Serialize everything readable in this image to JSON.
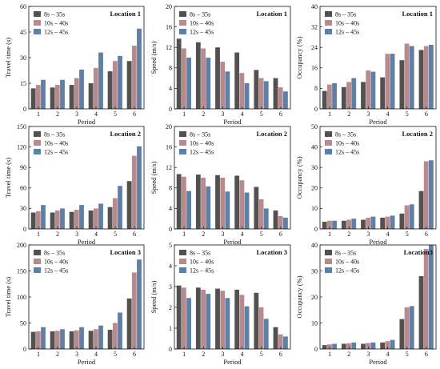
{
  "colors": [
    "#545050",
    "#b78b8e",
    "#5f7fa5"
  ],
  "legend": [
    "8s – 35s",
    "10s – 40s",
    "12s – 45s"
  ],
  "chart_data": [
    {
      "type": "bar",
      "title": "Location 1",
      "xlabel": "Period",
      "ylabel": "Travel time (s)",
      "categories": [
        "1",
        "2",
        "3",
        "4",
        "5",
        "6"
      ],
      "ylim": [
        0,
        60
      ],
      "yticks": [
        0,
        15,
        30,
        45,
        60
      ],
      "series": [
        {
          "name": "8s – 35s",
          "values": [
            12,
            12.5,
            14,
            15,
            22,
            28
          ]
        },
        {
          "name": "10s – 40s",
          "values": [
            14,
            14,
            18,
            24,
            28,
            37
          ]
        },
        {
          "name": "12s – 45s",
          "values": [
            17,
            17,
            23,
            33,
            31,
            47
          ]
        }
      ]
    },
    {
      "type": "bar",
      "title": "Location 1",
      "xlabel": "Period",
      "ylabel": "Speed (m/s)",
      "categories": [
        "1",
        "2",
        "3",
        "4",
        "5",
        "6"
      ],
      "ylim": [
        0,
        20
      ],
      "yticks": [
        0,
        4,
        8,
        12,
        16,
        20
      ],
      "series": [
        {
          "name": "8s – 35s",
          "values": [
            13.7,
            13,
            12,
            11,
            7.6,
            6
          ]
        },
        {
          "name": "10s – 40s",
          "values": [
            11.8,
            11.8,
            9.2,
            7,
            6,
            4.2
          ]
        },
        {
          "name": "12s – 45s",
          "values": [
            10,
            10,
            7.3,
            5,
            5.4,
            3.4
          ]
        }
      ]
    },
    {
      "type": "bar",
      "title": "Location 1",
      "xlabel": "Period",
      "ylabel": "Occupancy (%)",
      "categories": [
        "1",
        "2",
        "3",
        "4",
        "5",
        "6"
      ],
      "ylim": [
        0,
        40
      ],
      "yticks": [
        0,
        8,
        16,
        24,
        32,
        40
      ],
      "series": [
        {
          "name": "8s – 35s",
          "values": [
            7,
            8.5,
            10.5,
            12.3,
            19,
            23
          ]
        },
        {
          "name": "10s – 40s",
          "values": [
            9.5,
            10.5,
            15,
            21.5,
            25.5,
            24.5
          ]
        },
        {
          "name": "12s – 45s",
          "values": [
            10,
            12,
            14.5,
            21.5,
            24.5,
            25
          ]
        }
      ]
    },
    {
      "type": "bar",
      "title": "Location 2",
      "xlabel": "Period",
      "ylabel": "Travel time (s)",
      "categories": [
        "1",
        "2",
        "3",
        "4",
        "5",
        "6"
      ],
      "ylim": [
        0,
        150
      ],
      "yticks": [
        0,
        30,
        60,
        90,
        120,
        150
      ],
      "series": [
        {
          "name": "8s – 35s",
          "values": [
            24,
            24,
            25,
            27,
            32,
            70
          ]
        },
        {
          "name": "10s – 40s",
          "values": [
            26,
            27,
            28,
            30,
            45,
            107
          ]
        },
        {
          "name": "12s – 45s",
          "values": [
            35,
            30,
            35,
            37,
            63,
            121
          ]
        }
      ]
    },
    {
      "type": "bar",
      "title": "Location 2",
      "xlabel": "Period",
      "ylabel": "Speed (m/s)",
      "categories": [
        "1",
        "2",
        "3",
        "4",
        "5",
        "6"
      ],
      "ylim": [
        0,
        20
      ],
      "yticks": [
        0,
        4,
        8,
        12,
        16,
        20
      ],
      "series": [
        {
          "name": "8s – 35s",
          "values": [
            10.7,
            10.6,
            10.5,
            10.4,
            8.2,
            3.6
          ]
        },
        {
          "name": "10s – 40s",
          "values": [
            10.2,
            10,
            10,
            9.5,
            5.8,
            2.5
          ]
        },
        {
          "name": "12s – 45s",
          "values": [
            7.4,
            8.3,
            7.3,
            7.1,
            4,
            2.2
          ]
        }
      ]
    },
    {
      "type": "bar",
      "title": "Location 2",
      "xlabel": "Period",
      "ylabel": "Occupancy (%)",
      "categories": [
        "1",
        "2",
        "3",
        "4",
        "5",
        "6"
      ],
      "ylim": [
        0,
        50
      ],
      "yticks": [
        0,
        10,
        20,
        30,
        40,
        50
      ],
      "series": [
        {
          "name": "8s – 35s",
          "values": [
            3.5,
            4,
            4.5,
            5.5,
            7.5,
            18.5
          ]
        },
        {
          "name": "10s – 40s",
          "values": [
            4,
            4.5,
            5.5,
            6,
            11.5,
            33
          ]
        },
        {
          "name": "12s – 45s",
          "values": [
            4,
            5,
            6,
            6.5,
            12,
            33.5
          ]
        }
      ]
    },
    {
      "type": "bar",
      "title": "Location 3",
      "xlabel": "Period",
      "ylabel": "Travel time (s)",
      "categories": [
        "1",
        "2",
        "3",
        "4",
        "5",
        "6"
      ],
      "ylim": [
        0,
        200
      ],
      "yticks": [
        0,
        50,
        100,
        150,
        200
      ],
      "series": [
        {
          "name": "8s – 35s",
          "values": [
            33,
            34,
            34,
            35,
            37,
            97
          ]
        },
        {
          "name": "10s – 40s",
          "values": [
            34,
            35,
            36,
            38,
            50,
            147
          ]
        },
        {
          "name": "12s – 45s",
          "values": [
            42,
            38,
            42,
            45,
            70,
            172
          ]
        }
      ]
    },
    {
      "type": "bar",
      "title": "Location 3",
      "xlabel": "Period",
      "ylabel": "Speed (m/s)",
      "categories": [
        "1",
        "2",
        "3",
        "4",
        "5",
        "6"
      ],
      "ylim": [
        0,
        5
      ],
      "yticks": [
        0,
        1,
        2,
        3,
        4,
        5
      ],
      "series": [
        {
          "name": "8s – 35s",
          "values": [
            3.05,
            2.95,
            2.9,
            2.85,
            2.7,
            1.05
          ]
        },
        {
          "name": "10s – 40s",
          "values": [
            2.95,
            2.85,
            2.8,
            2.6,
            2,
            0.7
          ]
        },
        {
          "name": "12s – 45s",
          "values": [
            2.45,
            2.65,
            2.45,
            2.05,
            1.45,
            0.6
          ]
        }
      ]
    },
    {
      "type": "bar",
      "title": "Location3",
      "xlabel": "Period",
      "ylabel": "Occupancy (%)",
      "categories": [
        "1",
        "2",
        "3",
        "4",
        "5",
        "6"
      ],
      "ylim": [
        0,
        40
      ],
      "yticks": [
        0,
        10,
        20,
        30,
        40
      ],
      "series": [
        {
          "name": "8s – 35s",
          "values": [
            1.5,
            2,
            2,
            2.5,
            11.5,
            28
          ]
        },
        {
          "name": "10s – 40s",
          "values": [
            1.8,
            2.2,
            2.3,
            3,
            16,
            38.5
          ]
        },
        {
          "name": "12s – 45s",
          "values": [
            2,
            2.5,
            2.5,
            3.5,
            16.5,
            40
          ]
        }
      ]
    }
  ]
}
